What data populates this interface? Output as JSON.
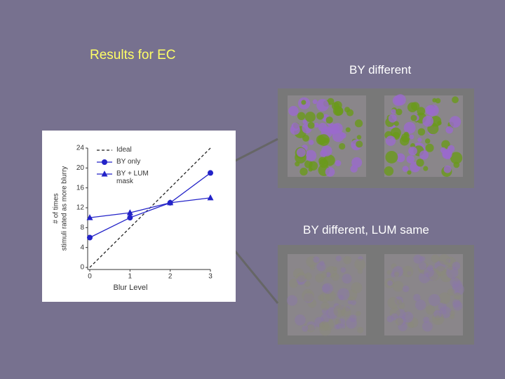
{
  "title": "Results for EC",
  "panels": [
    {
      "label": "BY different"
    },
    {
      "label": "BY different,  LUM same"
    }
  ],
  "chart_data": {
    "type": "line",
    "xlabel": "Blur Level",
    "ylabel": [
      "# of times",
      "stimuli rated as more blurry"
    ],
    "x": [
      0,
      1,
      2,
      3
    ],
    "xlim": [
      0,
      3
    ],
    "xticks": [
      0,
      1,
      2,
      3
    ],
    "ylim": [
      0,
      24
    ],
    "yticks": [
      0,
      4,
      8,
      12,
      16,
      20,
      24
    ],
    "series": [
      {
        "name": "Ideal",
        "color": "#222222",
        "dash": true,
        "marker": "none",
        "values": [
          0,
          8,
          16,
          24
        ]
      },
      {
        "name": "BY only",
        "color": "#2323c8",
        "dash": false,
        "marker": "circle",
        "values": [
          6,
          10,
          13,
          19
        ]
      },
      {
        "name": "BY + LUM mask",
        "color": "#2323c8",
        "dash": false,
        "marker": "triangle",
        "values": [
          10,
          11,
          13,
          14
        ]
      }
    ]
  }
}
